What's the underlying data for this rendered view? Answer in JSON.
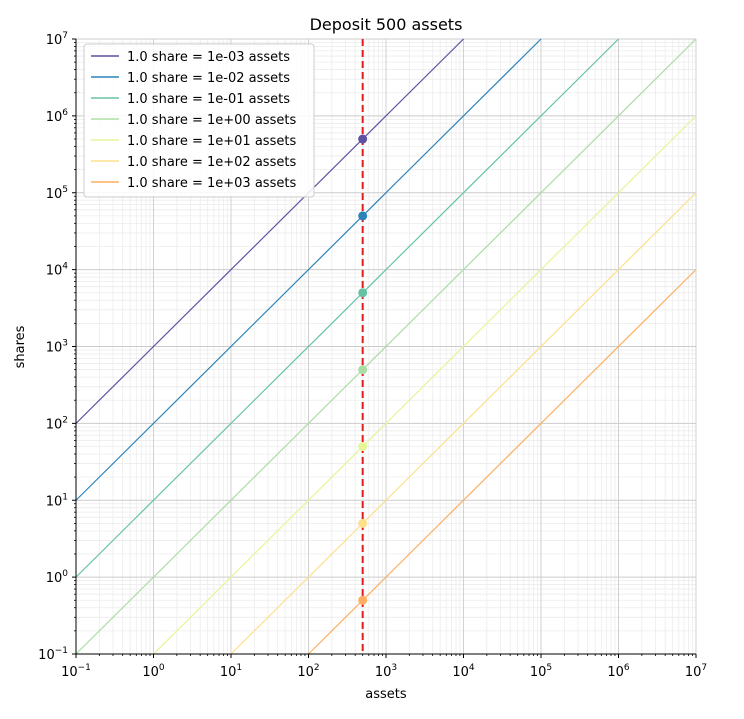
{
  "chart_data": {
    "type": "line",
    "title": "Deposit 500 assets",
    "xlabel": "assets",
    "ylabel": "shares",
    "xscale": "log",
    "yscale": "log",
    "xlim": [
      0.1,
      10000000
    ],
    "ylim": [
      0.1,
      10000000
    ],
    "grid": true,
    "legend_position": "top-left",
    "x_ticks": [
      {
        "value": 0.1,
        "base": "10",
        "exp": "−1"
      },
      {
        "value": 1,
        "base": "10",
        "exp": "0"
      },
      {
        "value": 10,
        "base": "10",
        "exp": "1"
      },
      {
        "value": 100,
        "base": "10",
        "exp": "2"
      },
      {
        "value": 1000,
        "base": "10",
        "exp": "3"
      },
      {
        "value": 10000,
        "base": "10",
        "exp": "4"
      },
      {
        "value": 100000,
        "base": "10",
        "exp": "5"
      },
      {
        "value": 1000000,
        "base": "10",
        "exp": "6"
      },
      {
        "value": 10000000,
        "base": "10",
        "exp": "7"
      }
    ],
    "y_ticks": [
      {
        "value": 0.1,
        "base": "10",
        "exp": "−1"
      },
      {
        "value": 1,
        "base": "10",
        "exp": "0"
      },
      {
        "value": 10,
        "base": "10",
        "exp": "1"
      },
      {
        "value": 100,
        "base": "10",
        "exp": "2"
      },
      {
        "value": 1000,
        "base": "10",
        "exp": "3"
      },
      {
        "value": 10000,
        "base": "10",
        "exp": "4"
      },
      {
        "value": 100000,
        "base": "10",
        "exp": "5"
      },
      {
        "value": 1000000,
        "base": "10",
        "exp": "6"
      },
      {
        "value": 10000000,
        "base": "10",
        "exp": "7"
      }
    ],
    "deposit_line": {
      "x": 500,
      "color": "#e41a1c"
    },
    "series": [
      {
        "name": "1.0 share = 1e-03 assets",
        "assets_per_share": 0.001,
        "color": "#5e4fa2",
        "deposit_point": {
          "x": 500,
          "y": 500000
        }
      },
      {
        "name": "1.0 share = 1e-02 assets",
        "assets_per_share": 0.01,
        "color": "#2b83ba",
        "deposit_point": {
          "x": 500,
          "y": 50000
        }
      },
      {
        "name": "1.0 share = 1e-01 assets",
        "assets_per_share": 0.1,
        "color": "#66c2a5",
        "deposit_point": {
          "x": 500,
          "y": 5000
        }
      },
      {
        "name": "1.0 share = 1e+00 assets",
        "assets_per_share": 1,
        "color": "#abdda4",
        "deposit_point": {
          "x": 500,
          "y": 500
        }
      },
      {
        "name": "1.0 share = 1e+01 assets",
        "assets_per_share": 10,
        "color": "#e6f598",
        "deposit_point": {
          "x": 500,
          "y": 50
        }
      },
      {
        "name": "1.0 share = 1e+02 assets",
        "assets_per_share": 100,
        "color": "#fee08b",
        "deposit_point": {
          "x": 500,
          "y": 5
        }
      },
      {
        "name": "1.0 share = 1e+03 assets",
        "assets_per_share": 1000,
        "color": "#fdae61",
        "deposit_point": {
          "x": 500,
          "y": 0.5
        }
      }
    ]
  }
}
